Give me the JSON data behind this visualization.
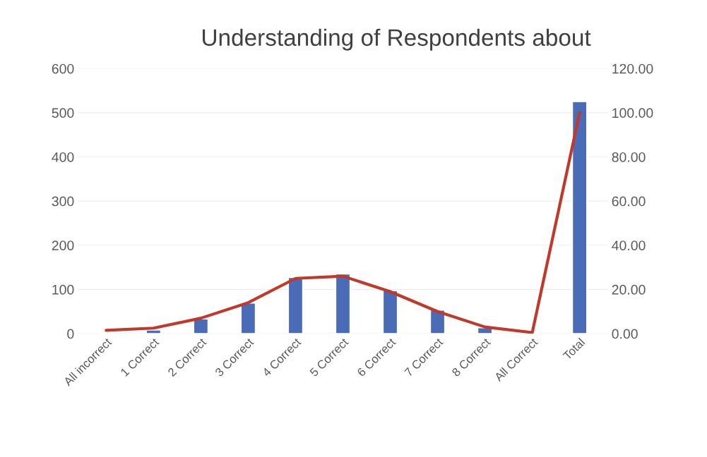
{
  "chart_data": {
    "type": "bar",
    "title": "Understanding of Respondents about",
    "categories": [
      "All incorrect",
      "1 Correct",
      "2 Correct",
      "3 Correct",
      "4 Correct",
      "5 Correct",
      "6 Correct",
      "7 Correct",
      "8 Correct",
      "All Correct",
      "Total"
    ],
    "series": [
      {
        "color": "#4a6bb5",
        "values": [
          null,
          8,
          33,
          69,
          127,
          135,
          97,
          53,
          13,
          null,
          525
        ]
      },
      {
        "type": "line",
        "axis": "y2",
        "color": "#c0392b",
        "values": [
          1.5,
          2.5,
          7,
          14,
          25,
          26,
          19,
          10,
          3,
          0.5,
          100
        ]
      }
    ],
    "ylim": [
      0,
      600
    ],
    "yticks": [
      0,
      100,
      200,
      300,
      400,
      500,
      600
    ],
    "y2lim": [
      0,
      120
    ],
    "y2ticks": [
      {
        "value": 0,
        "label": "0.00"
      },
      {
        "value": 20,
        "label": "20.00"
      },
      {
        "value": 40,
        "label": "40.00"
      },
      {
        "value": 60,
        "label": "60.00"
      },
      {
        "value": 80,
        "label": "80.00"
      },
      {
        "value": 100,
        "label": "100.00"
      },
      {
        "value": 120,
        "label": "120.00"
      }
    ],
    "grid": "y",
    "marker": "none"
  }
}
